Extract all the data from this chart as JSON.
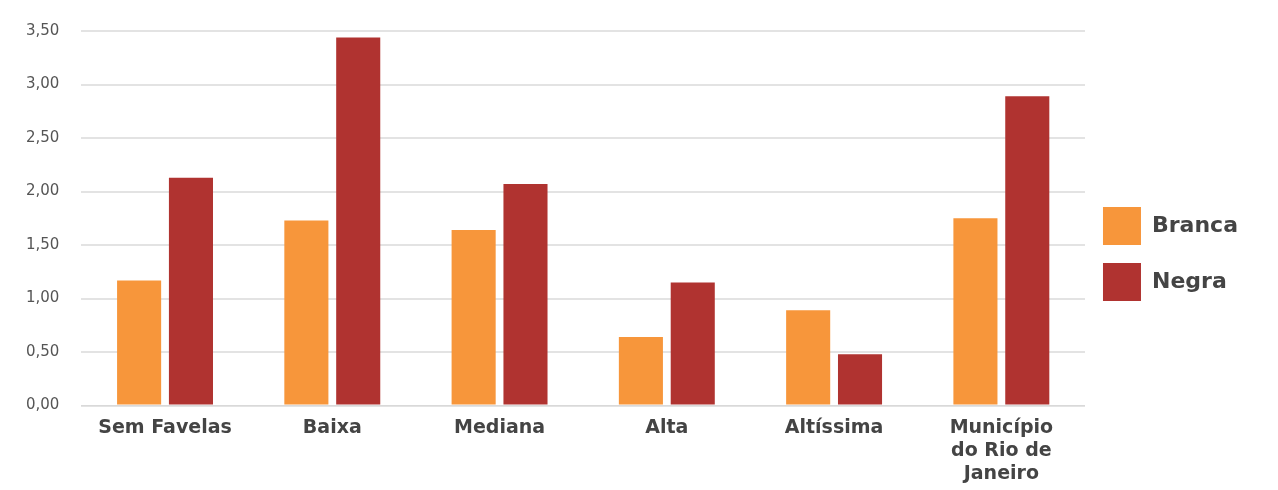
{
  "chart_data": {
    "type": "bar",
    "categories": [
      "Sem Favelas",
      "Baixa",
      "Mediana",
      "Alta",
      "Altíssima",
      "Município do Rio de Janeiro"
    ],
    "series": [
      {
        "name": "Branca",
        "color": "#f7963b",
        "values": [
          1.17,
          1.73,
          1.64,
          0.64,
          0.89,
          1.75
        ]
      },
      {
        "name": "Negra",
        "color": "#b03330",
        "values": [
          2.13,
          3.44,
          2.07,
          1.15,
          0.48,
          2.89
        ]
      }
    ],
    "ylim": [
      0,
      3.5
    ],
    "yticks": [
      {
        "value": 0,
        "label": "0,00"
      },
      {
        "value": 0.5,
        "label": "0,50"
      },
      {
        "value": 1,
        "label": "1,00"
      },
      {
        "value": 1.5,
        "label": "1,50"
      },
      {
        "value": 2,
        "label": "2,00"
      },
      {
        "value": 2.5,
        "label": "2,50"
      },
      {
        "value": 3,
        "label": "3,00"
      },
      {
        "value": 3.5,
        "label": "3,50"
      }
    ],
    "grid": "y",
    "legend": "right"
  }
}
